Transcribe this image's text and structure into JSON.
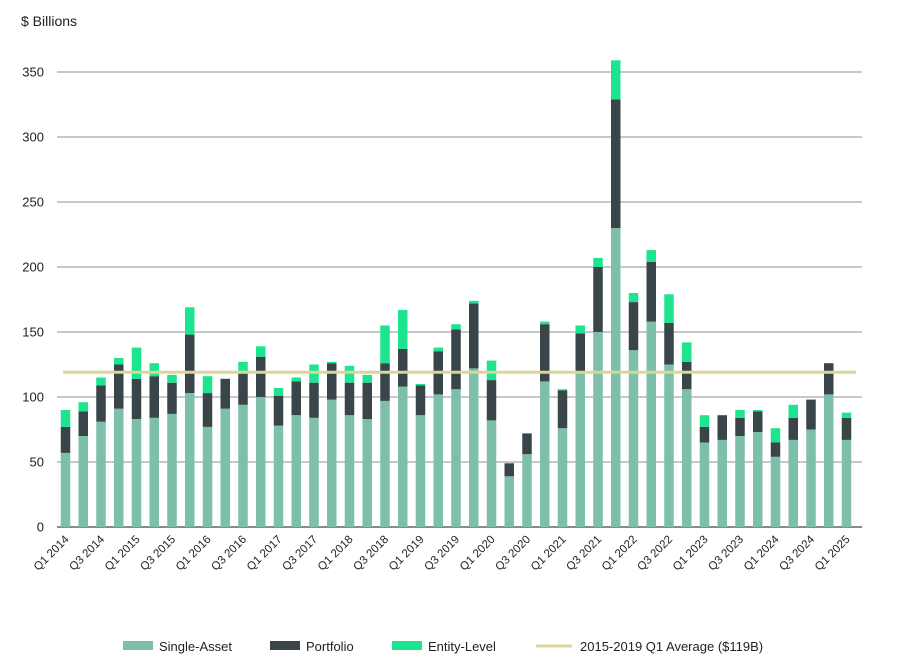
{
  "chart_data": {
    "type": "bar",
    "stacked": true,
    "ylabel": "$ Billions",
    "ylim": [
      0,
      350
    ],
    "yticks": [
      0,
      50,
      100,
      150,
      200,
      250,
      300,
      350
    ],
    "grid": true,
    "legend_position": "bottom",
    "categories": [
      "Q1 2014",
      "Q2 2014",
      "Q3 2014",
      "Q4 2014",
      "Q1 2015",
      "Q2 2015",
      "Q3 2015",
      "Q4 2015",
      "Q1 2016",
      "Q2 2016",
      "Q3 2016",
      "Q4 2016",
      "Q1 2017",
      "Q2 2017",
      "Q3 2017",
      "Q4 2017",
      "Q1 2018",
      "Q2 2018",
      "Q3 2018",
      "Q4 2018",
      "Q1 2019",
      "Q2 2019",
      "Q3 2019",
      "Q4 2019",
      "Q1 2020",
      "Q2 2020",
      "Q3 2020",
      "Q4 2020",
      "Q1 2021",
      "Q2 2021",
      "Q3 2021",
      "Q4 2021",
      "Q1 2022",
      "Q2 2022",
      "Q3 2022",
      "Q4 2022",
      "Q1 2023",
      "Q2 2023",
      "Q3 2023",
      "Q4 2023",
      "Q1 2024",
      "Q2 2024",
      "Q3 2024",
      "Q4 2024",
      "Q1 2025"
    ],
    "series": [
      {
        "name": "Single-Asset",
        "color": "#7dbfaa",
        "values": [
          57,
          70,
          81,
          91,
          83,
          84,
          87,
          103,
          77,
          91,
          94,
          100,
          78,
          86,
          84,
          98,
          86,
          83,
          97,
          108,
          86,
          102,
          106,
          122,
          82,
          39,
          56,
          112,
          76,
          118,
          150,
          230,
          136,
          158,
          125,
          106,
          65,
          67,
          70,
          73,
          54,
          67,
          75,
          102,
          67
        ]
      },
      {
        "name": "Portfolio",
        "color": "#3a4549",
        "values": [
          20,
          19,
          28,
          34,
          31,
          32,
          24,
          45,
          26,
          23,
          24,
          31,
          23,
          26,
          27,
          28,
          25,
          28,
          29,
          29,
          23,
          33,
          46,
          50,
          31,
          10,
          16,
          44,
          29,
          31,
          50,
          99,
          37,
          46,
          32,
          21,
          12,
          19,
          14,
          16,
          11,
          17,
          23,
          24,
          17
        ]
      },
      {
        "name": "Entity-Level",
        "color": "#1de48f",
        "values": [
          13,
          7,
          6,
          5,
          24,
          10,
          6,
          21,
          13,
          0,
          9,
          8,
          6,
          3,
          14,
          1,
          13,
          6,
          29,
          30,
          1,
          3,
          4,
          2,
          15,
          0,
          0,
          2,
          1,
          6,
          7,
          30,
          7,
          9,
          22,
          15,
          9,
          0,
          6,
          1,
          11,
          10,
          0,
          0,
          4
        ]
      }
    ],
    "reference_line": {
      "name": "2015-2019 Q1 Average ($119B)",
      "value": 119,
      "color": "#dcd59a"
    },
    "x_tick_labels": [
      "Q1 2014",
      "Q3 2014",
      "Q1 2015",
      "Q3 2015",
      "Q1 2016",
      "Q3 2016",
      "Q1 2017",
      "Q3 2017",
      "Q1 2018",
      "Q3 2018",
      "Q1 2019",
      "Q3 2019",
      "Q1 2020",
      "Q3 2020",
      "Q1 2021",
      "Q3 2021",
      "Q1 2022",
      "Q3 2022",
      "Q1 2023",
      "Q3 2023",
      "Q1 2024",
      "Q3 2024",
      "Q1 2025"
    ]
  }
}
